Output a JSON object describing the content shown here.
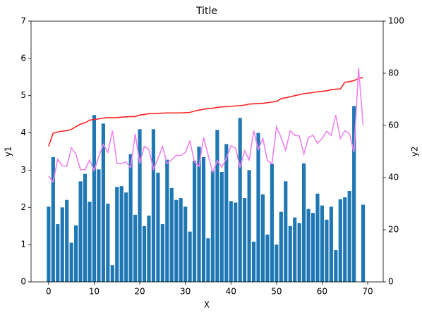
{
  "chart_data": {
    "type": "bar",
    "title": "Title",
    "xlabel": "X",
    "ylabel": "y1",
    "y2label": "y2",
    "x": [
      0,
      1,
      2,
      3,
      4,
      5,
      6,
      7,
      8,
      9,
      10,
      11,
      12,
      13,
      14,
      15,
      16,
      17,
      18,
      19,
      20,
      21,
      22,
      23,
      24,
      25,
      26,
      27,
      28,
      29,
      30,
      31,
      32,
      33,
      34,
      35,
      36,
      37,
      38,
      39,
      40,
      41,
      42,
      43,
      44,
      45,
      46,
      47,
      48,
      49,
      50,
      51,
      52,
      53,
      54,
      55,
      56,
      57,
      58,
      59,
      60,
      61,
      62,
      63,
      64,
      65,
      66,
      67,
      68,
      69
    ],
    "xlim": [
      -3.85,
      73.4
    ],
    "xticks": [
      0,
      10,
      20,
      30,
      40,
      50,
      60,
      70
    ],
    "ylim": [
      0,
      7
    ],
    "yticks": [
      0,
      1,
      2,
      3,
      4,
      5,
      6,
      7
    ],
    "y2lim": [
      0,
      100
    ],
    "y2ticks": [
      0,
      20,
      40,
      60,
      80,
      100
    ],
    "series": [
      {
        "type": "bar",
        "color": "#1f77b4",
        "values": [
          2.02,
          3.35,
          1.55,
          2.0,
          2.2,
          1.05,
          1.52,
          2.7,
          2.9,
          2.15,
          4.48,
          3.02,
          4.25,
          2.1,
          0.45,
          2.55,
          2.57,
          2.4,
          3.43,
          1.8,
          4.1,
          1.5,
          1.78,
          4.1,
          2.93,
          1.55,
          3.28,
          2.52,
          2.2,
          2.25,
          2.02,
          1.35,
          3.25,
          3.63,
          3.35,
          1.17,
          2.98,
          4.08,
          2.95,
          3.7,
          2.17,
          2.13,
          4.4,
          2.25,
          3.0,
          1.08,
          4.0,
          2.35,
          1.27,
          3.17,
          1.0,
          1.88,
          2.7,
          1.5,
          1.73,
          1.58,
          3.18,
          1.96,
          1.85,
          2.37,
          2.05,
          1.67,
          2.02,
          0.85,
          2.22,
          2.27,
          2.44,
          4.72,
          null,
          2.07
        ]
      },
      {
        "type": "line",
        "axis": "y2",
        "color": "#ff2020",
        "values": [
          52,
          57,
          57.5,
          57.8,
          58,
          58.5,
          59.5,
          60.5,
          61,
          62,
          62.3,
          62.5,
          62.8,
          63,
          63,
          63,
          63.2,
          63.3,
          63.4,
          63.4,
          64,
          64.2,
          64.5,
          64.5,
          64.6,
          64.7,
          64.8,
          64.8,
          64.8,
          64.8,
          64.9,
          65,
          65.5,
          65.9,
          66.2,
          66.5,
          66.6,
          66.9,
          67.1,
          67.2,
          67.3,
          67.5,
          67.6,
          67.8,
          68.2,
          68.3,
          68.4,
          68.5,
          68.7,
          69,
          69.2,
          70.3,
          70.6,
          71,
          71.4,
          71.8,
          72.2,
          72.4,
          72.6,
          72.9,
          73.1,
          73.3,
          73.7,
          73.9,
          74,
          76.6,
          76.8,
          77.2,
          78,
          78.4
        ]
      },
      {
        "type": "line",
        "axis": "y2",
        "color": "#ee82ee",
        "values": [
          40.5,
          38.4,
          47,
          44.6,
          44.3,
          51.4,
          49,
          43,
          43,
          46.8,
          42.7,
          48,
          52.7,
          49.7,
          58,
          45.4,
          45.4,
          46,
          43.8,
          56.8,
          45.4,
          52,
          50.8,
          43.2,
          47.3,
          52,
          45.4,
          46.8,
          48.6,
          48.4,
          49.7,
          54,
          46,
          44.3,
          55.4,
          48.6,
          42,
          46.5,
          44,
          47.3,
          52.2,
          51.4,
          43.8,
          50.3,
          46.8,
          58,
          50.8,
          55,
          46.5,
          45.4,
          59.5,
          55.4,
          50.5,
          58,
          56.2,
          56,
          49,
          55.4,
          56.2,
          53.2,
          55,
          57.8,
          56.2,
          64,
          55,
          58,
          56.8,
          49.7,
          82,
          60
        ]
      }
    ]
  }
}
